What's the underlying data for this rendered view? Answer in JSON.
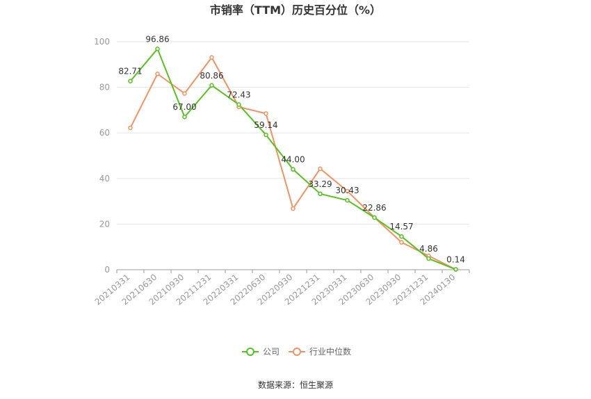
{
  "chart_data": {
    "type": "line",
    "title": "市销率（TTM）历史百分位（%）",
    "categories": [
      "20210331",
      "20210630",
      "20210930",
      "20211231",
      "20220331",
      "20220630",
      "20220930",
      "20221231",
      "20230331",
      "20230630",
      "20230930",
      "20231231",
      "20240130"
    ],
    "series": [
      {
        "name": "公司",
        "color": "#52c41a",
        "values": [
          82.71,
          96.86,
          67.0,
          80.86,
          72.43,
          59.14,
          44.0,
          33.29,
          30.43,
          22.86,
          14.57,
          4.86,
          0.14
        ],
        "labels": [
          "82.71",
          "96.86",
          "67.00",
          "80.86",
          "72.43",
          "59.14",
          "44.00",
          "33.29",
          "30.43",
          "22.86",
          "14.57",
          "4.86",
          "0.14"
        ]
      },
      {
        "name": "行业中位数",
        "color": "#f4915e",
        "values": [
          62.2,
          85.9,
          77.3,
          93.1,
          71.4,
          68.5,
          26.8,
          44.3,
          34.5,
          22.9,
          12.0,
          6.1,
          0.1
        ]
      }
    ],
    "ylim": [
      0,
      100
    ],
    "yticks": [
      0,
      20,
      40,
      60,
      80,
      100
    ],
    "grid": true,
    "legend": "bottom-center"
  },
  "source": "数据来源：恒生聚源"
}
